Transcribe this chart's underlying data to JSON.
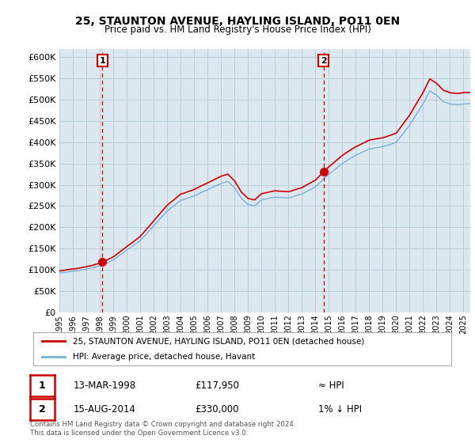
{
  "title": "25, STAUNTON AVENUE, HAYLING ISLAND, PO11 0EN",
  "subtitle": "Price paid vs. HM Land Registry's House Price Index (HPI)",
  "legend_line1": "25, STAUNTON AVENUE, HAYLING ISLAND, PO11 0EN (detached house)",
  "legend_line2": "HPI: Average price, detached house, Havant",
  "annotation1_date": "13-MAR-1998",
  "annotation1_price": "£117,950",
  "annotation1_hpi": "≈ HPI",
  "annotation2_date": "15-AUG-2014",
  "annotation2_price": "£330,000",
  "annotation2_hpi": "1% ↓ HPI",
  "footnote": "Contains HM Land Registry data © Crown copyright and database right 2024.\nThis data is licensed under the Open Government Licence v3.0.",
  "sale1_year": 1998.2,
  "sale1_value": 117950,
  "sale2_year": 2014.6,
  "sale2_value": 330000,
  "price_line_color": "#cc0000",
  "hpi_line_color": "#7ab0d4",
  "chart_bg_color": "#dce8f0",
  "background_color": "#ffffff",
  "grid_color": "#b8cdd8",
  "ylim_min": 0,
  "ylim_max": 620000,
  "xlim_min": 1995.0,
  "xlim_max": 2025.5
}
